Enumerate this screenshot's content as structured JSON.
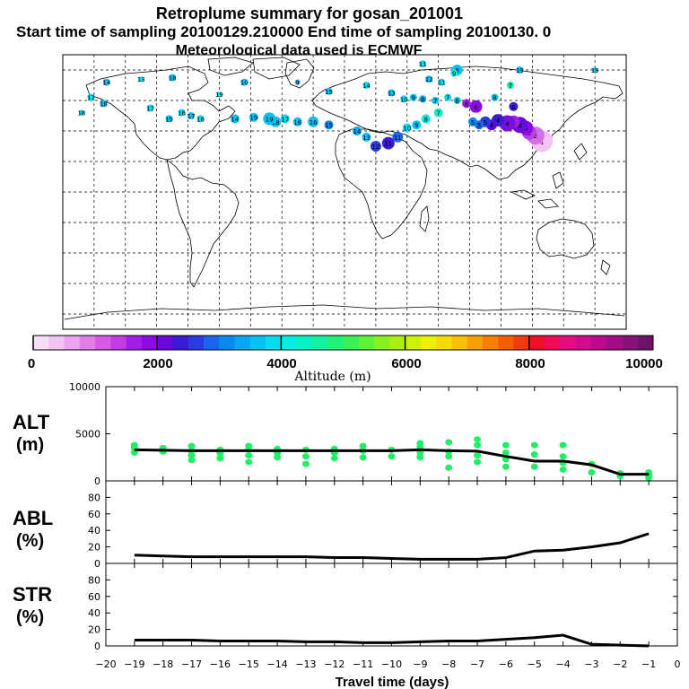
{
  "header": {
    "title": "Retroplume summary for gosan_201001",
    "sampling": "Start time of sampling 20100129.210000     End time of sampling 20100130.     0",
    "met": "Meteorological data used is ECMWF"
  },
  "colorbar": {
    "labels": [
      "0",
      "2000",
      "4000",
      "6000",
      "8000",
      "10000"
    ],
    "title": "Altitude (m)",
    "colors": [
      "#f6dff6",
      "#f1c4f1",
      "#eba3ee",
      "#e27ee9",
      "#d75ae6",
      "#c43be4",
      "#a21ee6",
      "#8a0ce0",
      "#6a0ad8",
      "#3a1ad2",
      "#2a3ae0",
      "#1a66ee",
      "#0a8af0",
      "#08a6f0",
      "#06c2f2",
      "#06dcf0",
      "#06eee2",
      "#08f2c4",
      "#12f2a0",
      "#22f27a",
      "#3af254",
      "#5cf236",
      "#86f21e",
      "#acf010",
      "#d0f008",
      "#eef008",
      "#f6dc06",
      "#f6c006",
      "#f6a006",
      "#f68006",
      "#f65e06",
      "#f23a10",
      "#f0102a",
      "#f00a5a",
      "#e80a80",
      "#d40a8e",
      "#bc0a8e",
      "#a40c86",
      "#8a107a",
      "#6e126a"
    ]
  },
  "map": {
    "grid_lat": [
      80,
      60,
      40,
      20,
      0,
      -20,
      -40,
      -60,
      -80
    ],
    "grid_lon": [
      -180,
      -160,
      -140,
      -120,
      -100,
      -80,
      -60,
      -40,
      -20,
      0,
      20,
      40,
      60,
      80,
      100,
      120,
      140,
      160,
      180
    ]
  },
  "markers": [
    {
      "lon": 126.2,
      "lat": 33.3,
      "day": "1",
      "color": "#f2c2f2",
      "r": 12
    },
    {
      "lon": 122,
      "lat": 37,
      "day": "2",
      "color": "#d66fe6",
      "r": 10
    },
    {
      "lon": 118,
      "lat": 39,
      "day": "2",
      "color": "#b540e2",
      "r": 8
    },
    {
      "lon": 116,
      "lat": 42,
      "day": "3",
      "color": "#8a0ce0",
      "r": 8
    },
    {
      "lon": 112,
      "lat": 44,
      "day": "3",
      "color": "#6a0ad8",
      "r": 9
    },
    {
      "lon": 108,
      "lat": 46,
      "day": "3",
      "color": "#a21ee6",
      "r": 7
    },
    {
      "lon": 104,
      "lat": 45,
      "day": "4",
      "color": "#7a10dc",
      "r": 9
    },
    {
      "lon": 98,
      "lat": 47,
      "day": "4",
      "color": "#3a1ad2",
      "r": 7
    },
    {
      "lon": 94,
      "lat": 44,
      "day": "4",
      "color": "#5a0ad8",
      "r": 6
    },
    {
      "lon": 90,
      "lat": 46,
      "day": "5",
      "color": "#2a3ae0",
      "r": 6
    },
    {
      "lon": 86,
      "lat": 44,
      "day": "5",
      "color": "#1a66ee",
      "r": 5
    },
    {
      "lon": 82,
      "lat": 46,
      "day": "5",
      "color": "#0a8af0",
      "r": 5
    },
    {
      "lon": 84,
      "lat": 56,
      "day": "6",
      "color": "#8a0ce0",
      "r": 7
    },
    {
      "lon": 78,
      "lat": 58,
      "day": "6",
      "color": "#a21ee6",
      "r": 5
    },
    {
      "lon": 72,
      "lat": 60,
      "day": "6",
      "color": "#06c2f2",
      "r": 4
    },
    {
      "lon": 66,
      "lat": 62,
      "day": "7",
      "color": "#06dcf0",
      "r": 4
    },
    {
      "lon": 58,
      "lat": 60,
      "day": "7",
      "color": "#06c2f2",
      "r": 4
    },
    {
      "lon": 50,
      "lat": 61,
      "day": "8",
      "color": "#08a6f0",
      "r": 4
    },
    {
      "lon": 44,
      "lat": 62,
      "day": "9",
      "color": "#06c2f2",
      "r": 4
    },
    {
      "lon": 38,
      "lat": 61,
      "day": "10",
      "color": "#06dcf0",
      "r": 4
    },
    {
      "lon": 62,
      "lat": 72,
      "day": "11",
      "color": "#06dcf0",
      "r": 4
    },
    {
      "lon": 54,
      "lat": 74,
      "day": "12",
      "color": "#06c2f2",
      "r": 4
    },
    {
      "lon": 30,
      "lat": 65,
      "day": "13",
      "color": "#06c2f2",
      "r": 4
    },
    {
      "lon": 14,
      "lat": 70,
      "day": "14",
      "color": "#06dcf0",
      "r": 4
    },
    {
      "lon": -10,
      "lat": 66,
      "day": "15",
      "color": "#06c2f2",
      "r": 4
    },
    {
      "lon": 60,
      "lat": 52,
      "day": "7",
      "color": "#08f2c4",
      "r": 5
    },
    {
      "lon": 52,
      "lat": 48,
      "day": "8",
      "color": "#06eee2",
      "r": 5
    },
    {
      "lon": 46,
      "lat": 44,
      "day": "9",
      "color": "#06c2f2",
      "r": 5
    },
    {
      "lon": 40,
      "lat": 42,
      "day": "10",
      "color": "#06dcf0",
      "r": 5
    },
    {
      "lon": 34,
      "lat": 36,
      "day": "11",
      "color": "#1a66ee",
      "r": 6
    },
    {
      "lon": 28,
      "lat": 32,
      "day": "11",
      "color": "#3a1ad2",
      "r": 7
    },
    {
      "lon": 20,
      "lat": 30,
      "day": "12",
      "color": "#2a3ae0",
      "r": 6
    },
    {
      "lon": 14,
      "lat": 36,
      "day": "13",
      "color": "#06c2f2",
      "r": 5
    },
    {
      "lon": 8,
      "lat": 40,
      "day": "14",
      "color": "#08a6f0",
      "r": 5
    },
    {
      "lon": -10,
      "lat": 44,
      "day": "15",
      "color": "#0a8af0",
      "r": 5
    },
    {
      "lon": -20,
      "lat": 46,
      "day": "16",
      "color": "#06c2f2",
      "r": 6
    },
    {
      "lon": -30,
      "lat": 46,
      "day": "16",
      "color": "#06c2f2",
      "r": 5
    },
    {
      "lon": -38,
      "lat": 48,
      "day": "17",
      "color": "#06dcf0",
      "r": 5
    },
    {
      "lon": -44,
      "lat": 46,
      "day": "18",
      "color": "#06c2f2",
      "r": 6
    },
    {
      "lon": -48,
      "lat": 48,
      "day": "19",
      "color": "#06c2f2",
      "r": 7
    },
    {
      "lon": -58,
      "lat": 49,
      "day": "19",
      "color": "#06c2f2",
      "r": 5
    },
    {
      "lon": -70,
      "lat": 48,
      "day": "14",
      "color": "#06c2f2",
      "r": 5
    },
    {
      "lon": -92,
      "lat": 48,
      "day": "16",
      "color": "#06dcf0",
      "r": 4
    },
    {
      "lon": -98,
      "lat": 50,
      "day": "17",
      "color": "#06c2f2",
      "r": 4
    },
    {
      "lon": -104,
      "lat": 52,
      "day": "16",
      "color": "#06dcf0",
      "r": 4
    },
    {
      "lon": -112,
      "lat": 48,
      "day": "15",
      "color": "#06c2f2",
      "r": 4
    },
    {
      "lon": -124,
      "lat": 55,
      "day": "17",
      "color": "#06dcf0",
      "r": 4
    },
    {
      "lon": -154,
      "lat": 58,
      "day": "18",
      "color": "#06c2f2",
      "r": 4
    },
    {
      "lon": -162,
      "lat": 62,
      "day": "17",
      "color": "#06dcf0",
      "r": 4
    },
    {
      "lon": -168,
      "lat": 52,
      "day": "18",
      "color": "#06c2f2",
      "r": 3
    },
    {
      "lon": -152,
      "lat": 72,
      "day": "14",
      "color": "#06c2f2",
      "r": 4
    },
    {
      "lon": -130,
      "lat": 74,
      "day": "13",
      "color": "#06dcf0",
      "r": 3
    },
    {
      "lon": -110,
      "lat": 75,
      "day": "18",
      "color": "#06c2f2",
      "r": 4
    },
    {
      "lon": -80,
      "lat": 64,
      "day": "19",
      "color": "#06dcf0",
      "r": 3
    },
    {
      "lon": -64,
      "lat": 72,
      "day": "10",
      "color": "#06c2f2",
      "r": 4
    },
    {
      "lon": -30,
      "lat": 72,
      "day": "9",
      "color": "#06c2f2",
      "r": 3
    },
    {
      "lon": 50,
      "lat": 84,
      "day": "11",
      "color": "#06dcf0",
      "r": 4
    },
    {
      "lon": 72,
      "lat": 80,
      "day": "8",
      "color": "#06c2f2",
      "r": 6
    },
    {
      "lon": 70,
      "lat": 78,
      "day": "9",
      "color": "#06eee2",
      "r": 4
    },
    {
      "lon": 112,
      "lat": 80,
      "day": "19",
      "color": "#06c2f2",
      "r": 4
    },
    {
      "lon": 160,
      "lat": 80,
      "day": "19",
      "color": "#06c2f2",
      "r": 3
    },
    {
      "lon": 106,
      "lat": 70,
      "day": "7",
      "color": "#12f2a0",
      "r": 4
    },
    {
      "lon": 96,
      "lat": 62,
      "day": "8",
      "color": "#06c2f2",
      "r": 4
    },
    {
      "lon": 108,
      "lat": 56,
      "day": "6",
      "color": "#3a1ad2",
      "r": 5
    }
  ],
  "panels": {
    "alt": {
      "label1": "ALT",
      "label2": "(m)",
      "ymin": 0,
      "ymax": 10000,
      "ticks": [
        "10000",
        "5000",
        "0"
      ],
      "tickvals": [
        10000,
        5000,
        0
      ]
    },
    "abl": {
      "label1": "ABL",
      "label2": "(%)",
      "ymin": 0,
      "ymax": 100,
      "ticks": [
        "80",
        "60",
        "40",
        "20",
        "0"
      ],
      "tickvals": [
        80,
        60,
        40,
        20,
        0
      ]
    },
    "str": {
      "label1": "STR",
      "label2": "(%)",
      "ymin": 0,
      "ymax": 100,
      "ticks": [
        "80",
        "60",
        "40",
        "20",
        "0"
      ],
      "tickvals": [
        80,
        60,
        40,
        20,
        0
      ]
    }
  },
  "chart_data": {
    "type": "line",
    "title": "Retroplume summary for gosan_201001",
    "xlabel": "Travel time (days)",
    "xlim": [
      -20,
      0
    ],
    "x_ticks": [
      "−20",
      "−19",
      "−18",
      "−17",
      "−16",
      "−15",
      "−14",
      "−13",
      "−12",
      "−11",
      "−10",
      "−9",
      "−8",
      "−7",
      "−6",
      "−5",
      "−4",
      "−3",
      "−2",
      "−1",
      "0"
    ],
    "x_tick_values": [
      -20,
      -19,
      -18,
      -17,
      -16,
      -15,
      -14,
      -13,
      -12,
      -11,
      -10,
      -9,
      -8,
      -7,
      -6,
      -5,
      -4,
      -3,
      -2,
      -1,
      0
    ],
    "series": [
      {
        "name": "ALT (m)",
        "x": [
          -19,
          -18,
          -17,
          -16,
          -15,
          -14,
          -13,
          -12,
          -11,
          -10,
          -9,
          -8,
          -7,
          -6,
          -5,
          -4,
          -3,
          -2,
          -1
        ],
        "values": [
          3300,
          3250,
          3200,
          3200,
          3200,
          3200,
          3200,
          3200,
          3200,
          3200,
          3300,
          3200,
          3150,
          2600,
          2100,
          2100,
          1700,
          700,
          700
        ]
      },
      {
        "name": "ABL (%)",
        "x": [
          -19,
          -18,
          -17,
          -16,
          -15,
          -14,
          -13,
          -12,
          -11,
          -10,
          -9,
          -8,
          -7,
          -6,
          -5,
          -4,
          -3,
          -2,
          -1
        ],
        "values": [
          10,
          9,
          8,
          8,
          8,
          8,
          8,
          7,
          7,
          6,
          5,
          5,
          5,
          7,
          15,
          16,
          20,
          25,
          36
        ]
      },
      {
        "name": "STR (%)",
        "x": [
          -19,
          -18,
          -17,
          -16,
          -15,
          -14,
          -13,
          -12,
          -11,
          -10,
          -9,
          -8,
          -7,
          -6,
          -5,
          -4,
          -3,
          -2,
          -1
        ],
        "values": [
          7,
          7,
          7,
          6,
          6,
          6,
          5,
          5,
          4,
          4,
          5,
          6,
          6,
          8,
          10,
          13,
          2,
          1,
          0
        ]
      }
    ],
    "alt_clusters": [
      {
        "x": -19,
        "values": [
          3000,
          3500,
          3800
        ]
      },
      {
        "x": -18,
        "values": [
          3100,
          3500
        ]
      },
      {
        "x": -17,
        "values": [
          2200,
          2700,
          3200,
          3700
        ]
      },
      {
        "x": -16,
        "values": [
          2400,
          2900,
          3300
        ]
      },
      {
        "x": -15,
        "values": [
          2000,
          2700,
          3300,
          3700
        ]
      },
      {
        "x": -14,
        "values": [
          2500,
          3000,
          3400
        ]
      },
      {
        "x": -13,
        "values": [
          1800,
          2600,
          3300
        ]
      },
      {
        "x": -12,
        "values": [
          2400,
          3000,
          3400
        ]
      },
      {
        "x": -11,
        "values": [
          2500,
          3200,
          3700
        ]
      },
      {
        "x": -10,
        "values": [
          2600,
          3300
        ]
      },
      {
        "x": -9,
        "values": [
          2500,
          3000,
          3600,
          4000
        ]
      },
      {
        "x": -8,
        "values": [
          1400,
          2600,
          3100,
          4100
        ]
      },
      {
        "x": -7,
        "values": [
          2000,
          2700,
          3800,
          4400
        ]
      },
      {
        "x": -6,
        "values": [
          1500,
          2300,
          3000,
          3800
        ]
      },
      {
        "x": -5,
        "values": [
          1500,
          2800,
          3800
        ]
      },
      {
        "x": -4,
        "values": [
          1200,
          1900,
          2600,
          3800
        ]
      },
      {
        "x": -3,
        "values": [
          900,
          1800
        ]
      },
      {
        "x": -2,
        "values": [
          500,
          800
        ]
      },
      {
        "x": -1,
        "values": [
          300,
          600,
          900
        ]
      }
    ]
  }
}
